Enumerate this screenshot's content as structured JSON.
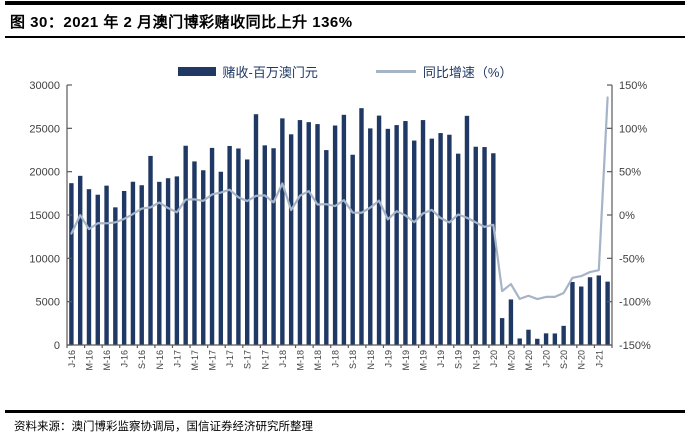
{
  "figure": {
    "title": "图 30：2021 年 2 月澳门博彩赌收同比上升 136%",
    "source": "资料来源：澳门博彩监察协调局，国信证券经济研究所整理"
  },
  "colors": {
    "bar": "#1F3864",
    "line": "#A6B4C7",
    "axis": "#595959",
    "tick_text": "#404040",
    "rule": "#000000"
  },
  "chart_data": {
    "type": "bar+line combo (bar on left axis, line on right axis)",
    "title": "",
    "grid": false,
    "legend_position": "top-center",
    "x_tick_interval_months": 2,
    "x_tick_labels": [
      "J-16",
      "M-16",
      "M-16",
      "J-16",
      "S-16",
      "N-16",
      "J-17",
      "M-17",
      "M-17",
      "J-17",
      "S-17",
      "N-17",
      "J-18",
      "M-18",
      "M-18",
      "J-18",
      "S-18",
      "N-18",
      "J-19",
      "M-19",
      "M-19",
      "J-19",
      "S-19",
      "N-19",
      "J-20",
      "M-20",
      "M-20",
      "J-20",
      "S-20",
      "N-20",
      "J-21"
    ],
    "left_axis": {
      "min": 0,
      "max": 30000,
      "ticks": [
        0,
        5000,
        10000,
        15000,
        20000,
        25000,
        30000
      ]
    },
    "right_axis": {
      "min": -150,
      "max": 150,
      "ticks_pct": [
        "150%",
        "100%",
        "50%",
        "0%",
        "-50%",
        "-100%",
        "-150%"
      ]
    },
    "series": [
      {
        "name": "赌收-百万澳门元",
        "type": "bar",
        "axis": "left",
        "color": "#1F3864",
        "values": [
          18674,
          19519,
          17980,
          17340,
          18388,
          15884,
          17771,
          18837,
          18435,
          21818,
          18826,
          19245,
          19455,
          22992,
          21183,
          20164,
          22743,
          19992,
          22965,
          22676,
          21408,
          26630,
          23038,
          22702,
          26148,
          24312,
          25952,
          25713,
          25488,
          22490,
          25327,
          26559,
          21952,
          27328,
          24995,
          26468,
          24942,
          25374,
          25840,
          23588,
          25952,
          23812,
          24453,
          24262,
          22079,
          26443,
          22877,
          22838,
          22126,
          3104,
          5257,
          754,
          1764,
          716,
          1344,
          1330,
          2211,
          7270,
          6748,
          7818,
          8025,
          7312
        ]
      },
      {
        "name": "同比增速（%）",
        "type": "line",
        "axis": "right",
        "color": "#A6B4C7",
        "values": [
          -21.4,
          -0.1,
          -16.3,
          -9.5,
          -9.6,
          -8.5,
          -4.5,
          1.1,
          7.4,
          8.8,
          14.4,
          8.0,
          3.1,
          17.8,
          18.1,
          16.3,
          23.7,
          25.9,
          29.2,
          20.4,
          16.1,
          22.1,
          22.6,
          14.6,
          36.4,
          5.7,
          22.2,
          27.6,
          12.1,
          12.5,
          10.3,
          17.1,
          2.8,
          2.6,
          8.5,
          16.6,
          -5.0,
          4.4,
          -0.4,
          -8.3,
          1.8,
          5.9,
          -3.5,
          -8.6,
          0.6,
          -3.2,
          -8.5,
          -13.7,
          -11.3,
          -87.8,
          -79.7,
          -96.8,
          -93.2,
          -97.0,
          -94.5,
          -94.5,
          -90.0,
          -72.5,
          -70.5,
          -65.8,
          -63.7,
          135.6
        ]
      }
    ]
  }
}
